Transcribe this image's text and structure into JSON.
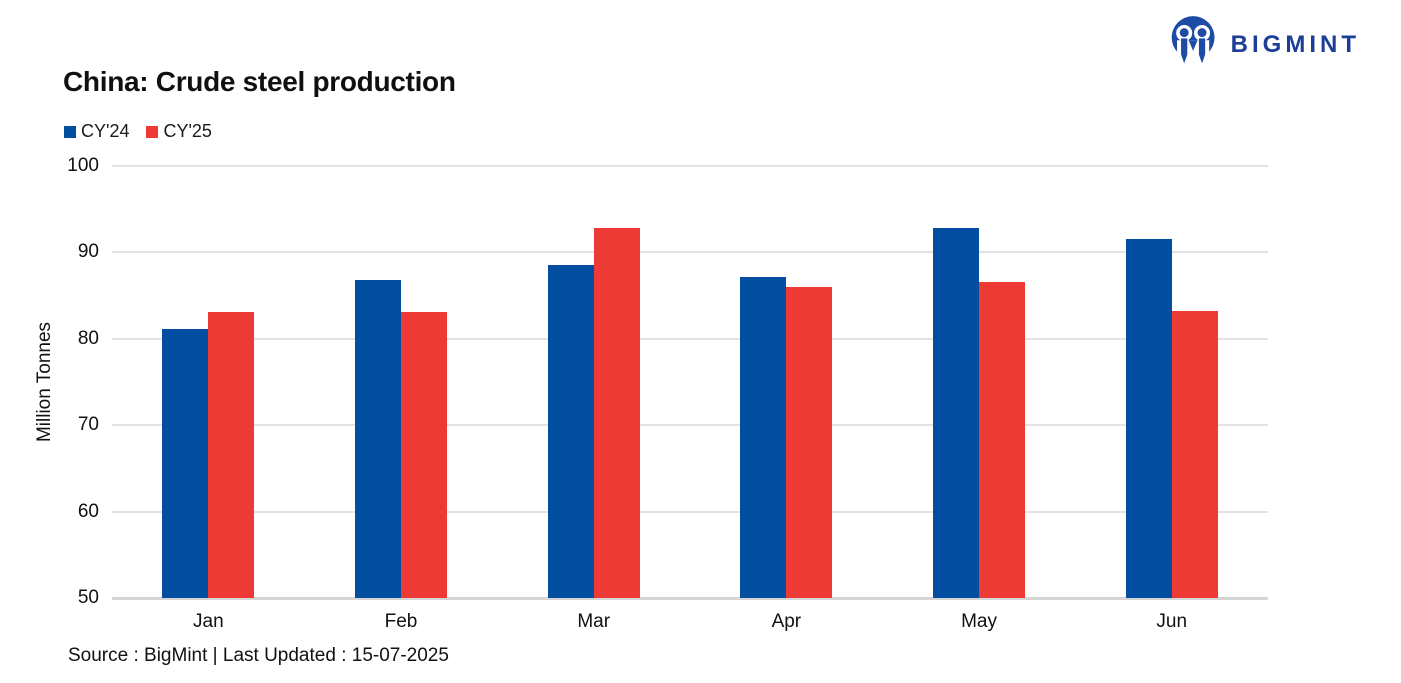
{
  "header": {
    "title": "China: Crude steel production",
    "logo_text": "BIGMINT"
  },
  "footer": {
    "source_text": "Source : BigMint | Last Updated : 15-07-2025"
  },
  "colors": {
    "cy24_blue": "#044EA2",
    "cy25_red": "#EE3A35",
    "logo_blue": "#1E4CA5",
    "logo_text_blue": "#1C3E99",
    "gridline": "#E3E3E3"
  },
  "chart_data": {
    "type": "bar",
    "title": "China: Crude steel production",
    "categories": [
      "Jan",
      "Feb",
      "Mar",
      "Apr",
      "May",
      "Jun"
    ],
    "series": [
      {
        "name": "CY'24",
        "color": "#044EA2",
        "values": [
          81.1,
          86.8,
          88.5,
          87.1,
          92.8,
          91.6
        ]
      },
      {
        "name": "CY'25",
        "color": "#EE3A35",
        "values": [
          83.1,
          83.1,
          92.8,
          86.0,
          86.6,
          83.2
        ]
      }
    ],
    "xlabel": "",
    "ylabel": "Million Tonnes",
    "ylim": [
      50,
      100
    ],
    "yticks": [
      100,
      90,
      80,
      70,
      60,
      50
    ],
    "grid": true,
    "legend_position": "top-left"
  }
}
